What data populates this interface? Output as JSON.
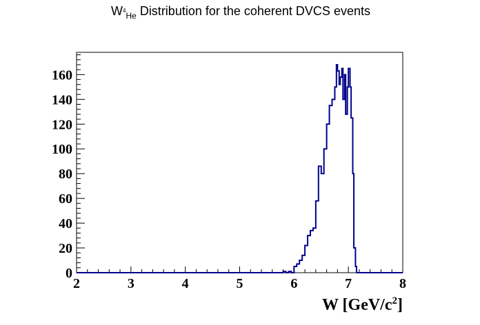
{
  "chart_data": {
    "type": "line",
    "style": "step-histogram",
    "title": {
      "prefix": "W",
      "sup": "4",
      "sub": "He",
      "rest": " Distribution for the coherent DVCS events"
    },
    "xlabel": {
      "main": "W [GeV/c",
      "sup": "2",
      "close": "]"
    },
    "ylabel": "",
    "xlim": [
      2,
      8
    ],
    "ylim": [
      0,
      178
    ],
    "x_ticks": [
      2,
      3,
      4,
      5,
      6,
      7,
      8
    ],
    "y_ticks": [
      0,
      20,
      40,
      60,
      80,
      100,
      120,
      140,
      160
    ],
    "x_tick_labels": [
      "2",
      "3",
      "4",
      "5",
      "6",
      "7",
      "8"
    ],
    "y_tick_labels": [
      "0",
      "20",
      "40",
      "60",
      "80",
      "100",
      "120",
      "140",
      "160"
    ],
    "line_color": "#00008b",
    "grid": false,
    "bin_edges": [
      5.8,
      5.85,
      5.9,
      5.95,
      6.0,
      6.05,
      6.1,
      6.15,
      6.2,
      6.25,
      6.3,
      6.35,
      6.4,
      6.45,
      6.5,
      6.55,
      6.6,
      6.65,
      6.7,
      6.75,
      6.78,
      6.8,
      6.83,
      6.85,
      6.88,
      6.9,
      6.93,
      6.95,
      6.98,
      7.0,
      7.03,
      7.05,
      7.08,
      7.1,
      7.13,
      7.15,
      7.18,
      7.2
    ],
    "counts": [
      1,
      0,
      1,
      0,
      5,
      7,
      10,
      14,
      22,
      30,
      34,
      36,
      58,
      86,
      80,
      100,
      120,
      135,
      140,
      150,
      168,
      163,
      152,
      158,
      165,
      140,
      160,
      128,
      150,
      165,
      150,
      125,
      80,
      20,
      5,
      0,
      0
    ]
  }
}
